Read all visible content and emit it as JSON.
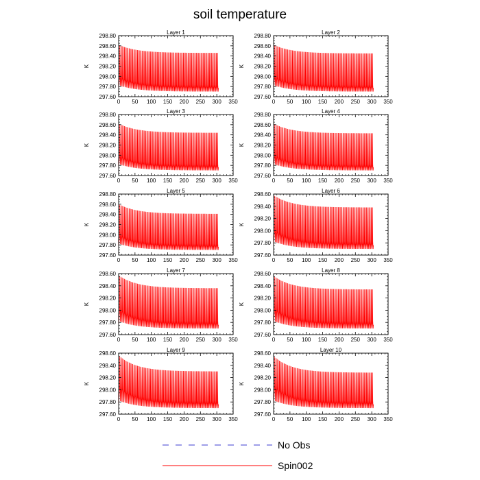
{
  "figure": {
    "title": "soil temperature",
    "legend": [
      {
        "label": "No Obs",
        "color": "#3b3bd0",
        "style": "dashed"
      },
      {
        "label": "Spin002",
        "color": "#ff0000",
        "style": "solid"
      }
    ]
  },
  "chart_data": [
    {
      "type": "line",
      "title": "Layer 1",
      "ylabel": "K",
      "xlim": [
        0,
        350
      ],
      "ylim": [
        297.6,
        298.8
      ],
      "x_ticks": [
        0,
        50,
        100,
        150,
        200,
        250,
        300,
        350
      ],
      "y_ticks": [
        "297.60",
        "297.80",
        "298.00",
        "298.20",
        "298.40",
        "298.60",
        "298.80"
      ],
      "series": [
        {
          "name": "Spin002",
          "color": "#ff0000",
          "x_range": [
            0,
            305
          ],
          "peak_start": 298.62,
          "peak_end": 298.46,
          "base_start": 297.98,
          "base_end": 297.79,
          "trough_start": 297.82,
          "trough_end": 297.7
        }
      ]
    },
    {
      "type": "line",
      "title": "Layer 2",
      "ylabel": "K",
      "xlim": [
        0,
        350
      ],
      "ylim": [
        297.6,
        298.8
      ],
      "x_ticks": [
        0,
        50,
        100,
        150,
        200,
        250,
        300,
        350
      ],
      "y_ticks": [
        "297.60",
        "297.80",
        "298.00",
        "298.20",
        "298.40",
        "298.60",
        "298.80"
      ],
      "series": [
        {
          "name": "Spin002",
          "color": "#ff0000",
          "x_range": [
            0,
            305
          ],
          "peak_start": 298.62,
          "peak_end": 298.45,
          "base_start": 297.98,
          "base_end": 297.79,
          "trough_start": 297.82,
          "trough_end": 297.7
        }
      ]
    },
    {
      "type": "line",
      "title": "Layer 3",
      "ylabel": "K",
      "xlim": [
        0,
        350
      ],
      "ylim": [
        297.6,
        298.8
      ],
      "x_ticks": [
        0,
        50,
        100,
        150,
        200,
        250,
        300,
        350
      ],
      "y_ticks": [
        "297.60",
        "297.80",
        "298.00",
        "298.20",
        "298.40",
        "298.60",
        "298.80"
      ],
      "series": [
        {
          "name": "Spin002",
          "color": "#ff0000",
          "x_range": [
            0,
            305
          ],
          "peak_start": 298.62,
          "peak_end": 298.44,
          "base_start": 297.98,
          "base_end": 297.78,
          "trough_start": 297.82,
          "trough_end": 297.7
        }
      ]
    },
    {
      "type": "line",
      "title": "Layer 4",
      "ylabel": "K",
      "xlim": [
        0,
        350
      ],
      "ylim": [
        297.6,
        298.8
      ],
      "x_ticks": [
        0,
        50,
        100,
        150,
        200,
        250,
        300,
        350
      ],
      "y_ticks": [
        "297.60",
        "297.80",
        "298.00",
        "298.20",
        "298.40",
        "298.60",
        "298.80"
      ],
      "series": [
        {
          "name": "Spin002",
          "color": "#ff0000",
          "x_range": [
            0,
            305
          ],
          "peak_start": 298.62,
          "peak_end": 298.43,
          "base_start": 297.98,
          "base_end": 297.78,
          "trough_start": 297.82,
          "trough_end": 297.7
        }
      ]
    },
    {
      "type": "line",
      "title": "Layer 5",
      "ylabel": "K",
      "xlim": [
        0,
        350
      ],
      "ylim": [
        297.6,
        298.8
      ],
      "x_ticks": [
        0,
        50,
        100,
        150,
        200,
        250,
        300,
        350
      ],
      "y_ticks": [
        "297.60",
        "297.80",
        "298.00",
        "298.20",
        "298.40",
        "298.60",
        "298.80"
      ],
      "series": [
        {
          "name": "Spin002",
          "color": "#ff0000",
          "x_range": [
            0,
            305
          ],
          "peak_start": 298.6,
          "peak_end": 298.41,
          "base_start": 297.99,
          "base_end": 297.78,
          "trough_start": 297.82,
          "trough_end": 297.7
        }
      ]
    },
    {
      "type": "line",
      "title": "Layer 6",
      "ylabel": "K",
      "xlim": [
        0,
        350
      ],
      "ylim": [
        297.6,
        298.6
      ],
      "x_ticks": [
        0,
        50,
        100,
        150,
        200,
        250,
        300,
        350
      ],
      "y_ticks": [
        "297.60",
        "297.80",
        "298.00",
        "298.20",
        "298.40",
        "298.60"
      ],
      "series": [
        {
          "name": "Spin002",
          "color": "#ff0000",
          "x_range": [
            0,
            305
          ],
          "peak_start": 298.58,
          "peak_end": 298.38,
          "base_start": 298.0,
          "base_end": 297.78,
          "trough_start": 297.82,
          "trough_end": 297.7
        }
      ]
    },
    {
      "type": "line",
      "title": "Layer 7",
      "ylabel": "K",
      "xlim": [
        0,
        350
      ],
      "ylim": [
        297.6,
        298.6
      ],
      "x_ticks": [
        0,
        50,
        100,
        150,
        200,
        250,
        300,
        350
      ],
      "y_ticks": [
        "297.60",
        "297.80",
        "298.00",
        "298.20",
        "298.40",
        "298.60"
      ],
      "series": [
        {
          "name": "Spin002",
          "color": "#ff0000",
          "x_range": [
            0,
            305
          ],
          "peak_start": 298.57,
          "peak_end": 298.36,
          "base_start": 298.01,
          "base_end": 297.78,
          "trough_start": 297.82,
          "trough_end": 297.7
        }
      ]
    },
    {
      "type": "line",
      "title": "Layer 8",
      "ylabel": "K",
      "xlim": [
        0,
        350
      ],
      "ylim": [
        297.6,
        298.6
      ],
      "x_ticks": [
        0,
        50,
        100,
        150,
        200,
        250,
        300,
        350
      ],
      "y_ticks": [
        "297.60",
        "297.80",
        "298.00",
        "298.20",
        "298.40",
        "298.60"
      ],
      "series": [
        {
          "name": "Spin002",
          "color": "#ff0000",
          "x_range": [
            0,
            305
          ],
          "peak_start": 298.56,
          "peak_end": 298.34,
          "base_start": 298.02,
          "base_end": 297.78,
          "trough_start": 297.82,
          "trough_end": 297.7
        }
      ]
    },
    {
      "type": "line",
      "title": "Layer 9",
      "ylabel": "K",
      "xlim": [
        0,
        350
      ],
      "ylim": [
        297.6,
        298.6
      ],
      "x_ticks": [
        0,
        50,
        100,
        150,
        200,
        250,
        300,
        350
      ],
      "y_ticks": [
        "297.60",
        "297.80",
        "298.00",
        "298.20",
        "298.40",
        "298.60"
      ],
      "series": [
        {
          "name": "Spin002",
          "color": "#ff0000",
          "x_range": [
            0,
            305
          ],
          "peak_start": 298.56,
          "peak_end": 298.3,
          "base_start": 298.04,
          "base_end": 297.78,
          "trough_start": 297.82,
          "trough_end": 297.7
        }
      ]
    },
    {
      "type": "line",
      "title": "Layer 10",
      "ylabel": "K",
      "xlim": [
        0,
        350
      ],
      "ylim": [
        297.6,
        298.6
      ],
      "x_ticks": [
        0,
        50,
        100,
        150,
        200,
        250,
        300,
        350
      ],
      "y_ticks": [
        "297.60",
        "297.80",
        "298.00",
        "298.20",
        "298.40",
        "298.60"
      ],
      "series": [
        {
          "name": "Spin002",
          "color": "#ff0000",
          "x_range": [
            0,
            305
          ],
          "peak_start": 298.55,
          "peak_end": 298.28,
          "base_start": 298.05,
          "base_end": 297.78,
          "trough_start": 297.82,
          "trough_end": 297.7
        }
      ]
    }
  ]
}
